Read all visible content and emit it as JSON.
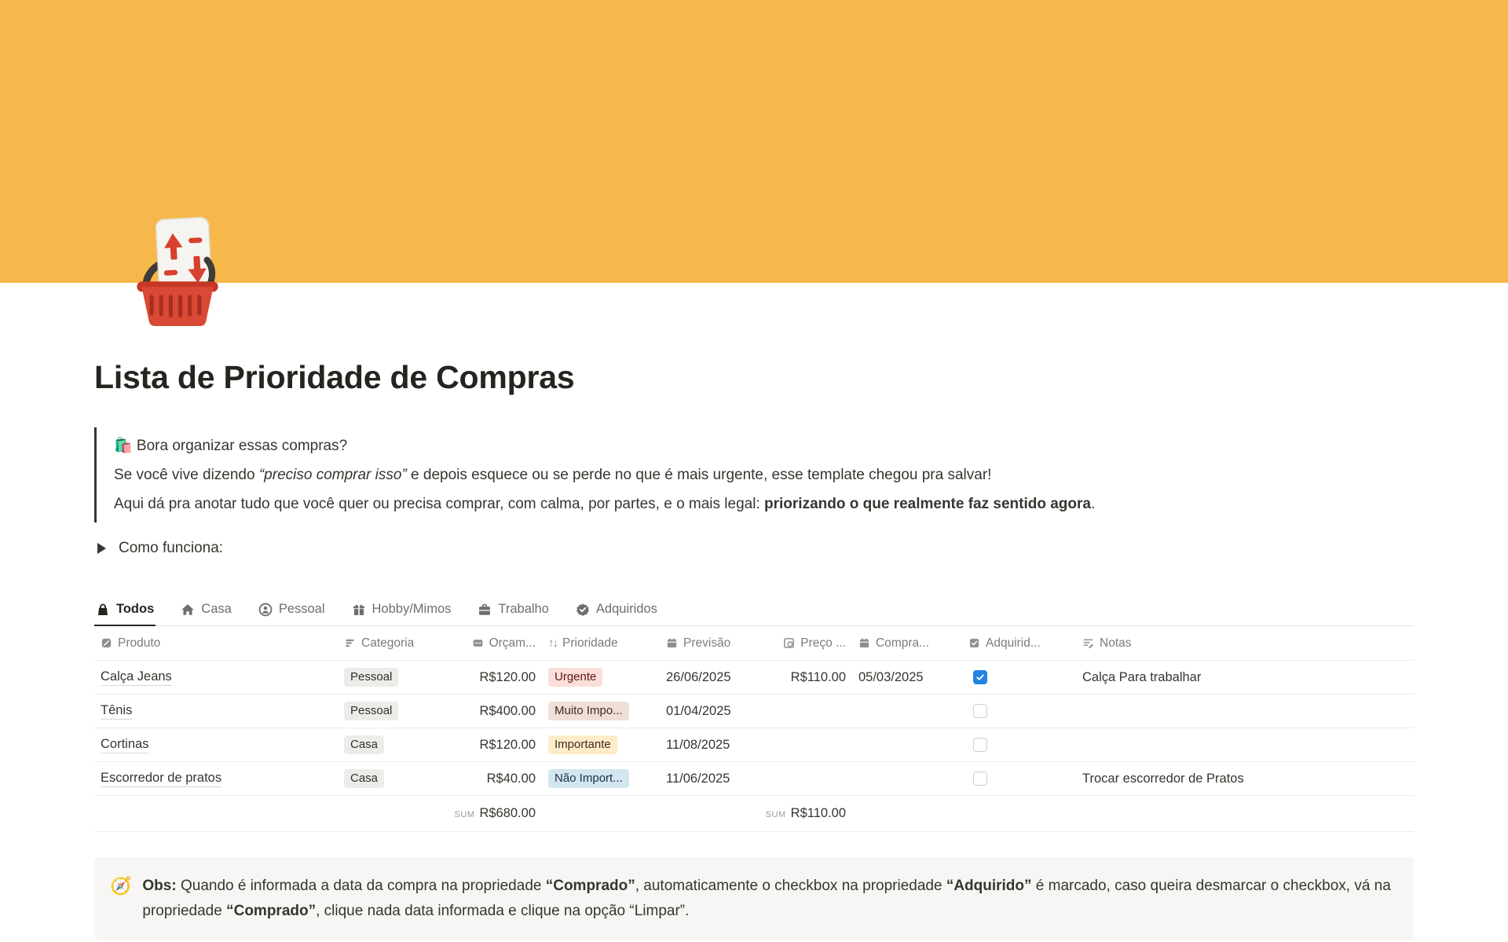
{
  "banner": {
    "color": "#F6B84B"
  },
  "page": {
    "icon_name": "shopping-basket-sort-icon",
    "title": "Lista de Prioridade de Compras"
  },
  "quote": {
    "line1": "🛍️ Bora organizar essas compras?",
    "line2": [
      {
        "t": "Se você vive dizendo "
      },
      {
        "t": "“preciso comprar isso”",
        "i": true
      },
      {
        "t": " e depois esquece ou se perde no que é mais urgente, esse template chegou pra salvar!"
      }
    ],
    "line3": [
      {
        "t": "Aqui dá pra anotar tudo que você quer ou precisa comprar, com calma, por partes, e o mais legal: "
      },
      {
        "t": "priorizando o que realmente faz sentido agora",
        "b": true
      },
      {
        "t": "."
      }
    ]
  },
  "toggle": {
    "label": "Como funciona:"
  },
  "tabs": [
    {
      "label": "Todos",
      "icon": "bag-icon",
      "active": true
    },
    {
      "label": "Casa",
      "icon": "house-icon",
      "active": false
    },
    {
      "label": "Pessoal",
      "icon": "person-icon",
      "active": false
    },
    {
      "label": "Hobby/Mimos",
      "icon": "gift-icon",
      "active": false
    },
    {
      "label": "Trabalho",
      "icon": "briefcase-icon",
      "active": false
    },
    {
      "label": "Adquiridos",
      "icon": "badge-check-icon",
      "active": false
    }
  ],
  "table": {
    "columns": {
      "produto": {
        "label": "Produto",
        "icon": "title-icon"
      },
      "categoria": {
        "label": "Categoria",
        "icon": "select-icon"
      },
      "orcamento": {
        "label": "Orçam...",
        "icon": "number-icon"
      },
      "prioridade": {
        "label": "Prioridade",
        "icon": "sort-arrows-icon",
        "sort_glyph": "↑↓"
      },
      "previsao": {
        "label": "Previsão",
        "icon": "calendar-icon"
      },
      "preco": {
        "label": "Preço ...",
        "icon": "rollup-icon"
      },
      "comprado": {
        "label": "Compra...",
        "icon": "calendar-icon"
      },
      "adquirido": {
        "label": "Adquirid...",
        "icon": "checkbox-icon"
      },
      "notas": {
        "label": "Notas",
        "icon": "text-icon"
      }
    },
    "rows": [
      {
        "produto": "Calça Jeans",
        "categoria": "Pessoal",
        "categoria_color": "gray",
        "orcamento": "R$120.00",
        "prioridade": "Urgente",
        "prioridade_color": "red",
        "previsao": "26/06/2025",
        "preco": "R$110.00",
        "comprado": "05/03/2025",
        "adquirido": true,
        "notas": "Calça Para trabalhar"
      },
      {
        "produto": "Tênis",
        "categoria": "Pessoal",
        "categoria_color": "gray",
        "orcamento": "R$400.00",
        "prioridade": "Muito Impo...",
        "prioridade_color": "brown",
        "previsao": "01/04/2025",
        "preco": "",
        "comprado": "",
        "adquirido": false,
        "notas": ""
      },
      {
        "produto": "Cortinas",
        "categoria": "Casa",
        "categoria_color": "gray",
        "orcamento": "R$120.00",
        "prioridade": "Importante",
        "prioridade_color": "yellow",
        "previsao": "11/08/2025",
        "preco": "",
        "comprado": "",
        "adquirido": false,
        "notas": ""
      },
      {
        "produto": "Escorredor de pratos",
        "categoria": "Casa",
        "categoria_color": "gray",
        "orcamento": "R$40.00",
        "prioridade": "Não Import...",
        "prioridade_color": "blue",
        "previsao": "11/06/2025",
        "preco": "",
        "comprado": "",
        "adquirido": false,
        "notas": "Trocar escorredor de Pratos"
      }
    ],
    "sums": {
      "label": "SUM",
      "orcamento": "R$680.00",
      "preco": "R$110.00"
    }
  },
  "callout": {
    "icon": "compass-emoji",
    "icon_glyph": "🧭",
    "segments": [
      {
        "t": "Obs: ",
        "b": true
      },
      {
        "t": "Quando é informada a data da compra na propriedade "
      },
      {
        "t": "“Comprado”",
        "b": true
      },
      {
        "t": ", automaticamente o checkbox na propriedade "
      },
      {
        "t": "“Adquirido”",
        "b": true
      },
      {
        "t": " é marcado, caso queira desmarcar o checkbox, vá na propriedade "
      },
      {
        "t": "“Comprado”",
        "b": true
      },
      {
        "t": ", clique nada data informada e clique na opção “Limpar”."
      }
    ]
  }
}
